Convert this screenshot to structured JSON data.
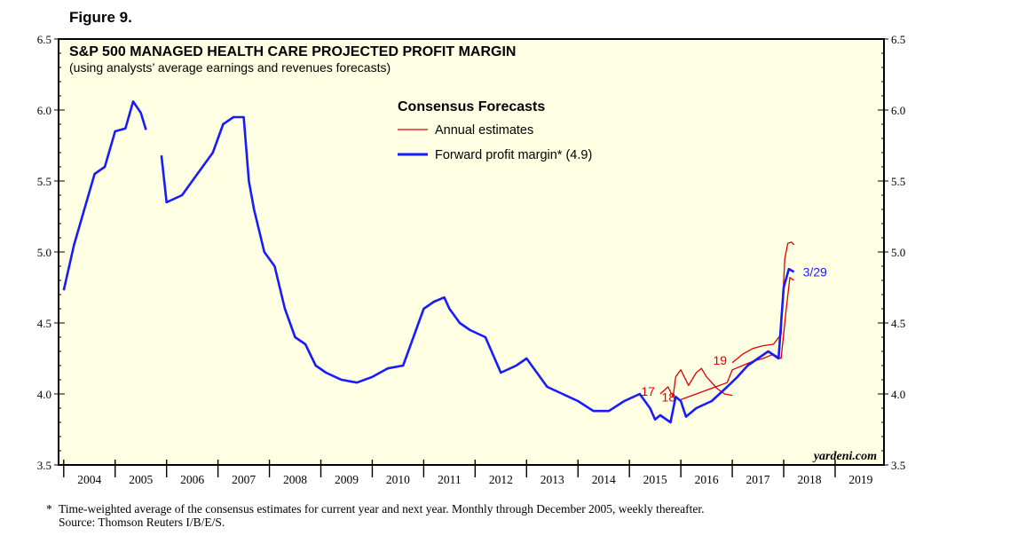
{
  "figure_label": "Figure 9.",
  "footnote": {
    "marker": "*",
    "text": "Time-weighted average of the consensus estimates for current year and next year. Monthly through December 2005, weekly thereafter.",
    "source": "Source: Thomson Reuters I/B/E/S."
  },
  "chart_data": {
    "type": "line",
    "title": "S&P 500 MANAGED HEALTH CARE PROJECTED PROFIT MARGIN",
    "subtitle": "(using analysts’ average earnings and revenues forecasts)",
    "legend_title": "Consensus Forecasts",
    "legend_position": "top-center",
    "watermark": "yardeni.com",
    "ylim": [
      3.5,
      6.5
    ],
    "xlim": [
      2003.9,
      2019.95
    ],
    "y_ticks": [
      "3.5",
      "4.0",
      "4.5",
      "5.0",
      "5.5",
      "6.0",
      "6.5"
    ],
    "x_tick_labels": [
      "2004",
      "2005",
      "2006",
      "2007",
      "2008",
      "2009",
      "2010",
      "2011",
      "2012",
      "2013",
      "2014",
      "2015",
      "2016",
      "2017",
      "2018",
      "2019"
    ],
    "grid": false,
    "series": [
      {
        "name": "Annual estimates",
        "color": "#dd0000",
        "segments": [
          {
            "label": "17",
            "x": [
              2015.6,
              2015.75,
              2015.85,
              2015.9,
              2016.0,
              2016.15,
              2016.3,
              2016.4,
              2016.5,
              2016.7,
              2016.85,
              2017.0
            ],
            "y": [
              4.0,
              4.05,
              3.98,
              4.12,
              4.17,
              4.06,
              4.15,
              4.18,
              4.12,
              4.04,
              4.0,
              3.99
            ]
          },
          {
            "label": "18",
            "x": [
              2016.0,
              2016.3,
              2016.6,
              2016.9,
              2017.0,
              2017.2,
              2017.4,
              2017.6,
              2017.8,
              2017.95,
              2018.05,
              2018.12,
              2018.2
            ],
            "y": [
              3.96,
              4.0,
              4.04,
              4.08,
              4.17,
              4.2,
              4.23,
              4.25,
              4.28,
              4.25,
              4.6,
              4.82,
              4.8
            ]
          },
          {
            "label": "19",
            "x": [
              2017.0,
              2017.2,
              2017.4,
              2017.6,
              2017.8,
              2017.95,
              2018.02,
              2018.08,
              2018.15,
              2018.2
            ],
            "y": [
              4.22,
              4.28,
              4.32,
              4.34,
              4.35,
              4.42,
              4.95,
              5.06,
              5.07,
              5.05
            ]
          }
        ]
      },
      {
        "name": "Forward profit margin* (4.9)",
        "end_label": "3/29",
        "color": "#1a1aff",
        "segments": [
          {
            "x": [
              2004.0,
              2004.2,
              2004.4,
              2004.6,
              2004.8,
              2005.0,
              2005.2,
              2005.35,
              2005.5,
              2005.6
            ],
            "y": [
              4.73,
              5.05,
              5.3,
              5.55,
              5.6,
              5.85,
              5.87,
              6.06,
              5.98,
              5.86
            ]
          },
          {
            "x": [
              2005.9,
              2006.0,
              2006.3,
              2006.6,
              2006.9,
              2007.1,
              2007.3,
              2007.5,
              2007.6,
              2007.7,
              2007.9,
              2008.1,
              2008.3,
              2008.5,
              2008.7,
              2008.9,
              2009.1,
              2009.4,
              2009.7,
              2010.0,
              2010.3,
              2010.6,
              2010.9,
              2011.0,
              2011.2,
              2011.4,
              2011.5,
              2011.7,
              2011.9,
              2012.2,
              2012.5,
              2012.8,
              2013.0,
              2013.2,
              2013.4,
              2013.7,
              2014.0,
              2014.3,
              2014.6,
              2014.9,
              2015.2,
              2015.4,
              2015.5,
              2015.6,
              2015.8,
              2015.9,
              2016.0,
              2016.1,
              2016.3,
              2016.6,
              2016.9,
              2017.1,
              2017.3,
              2017.5,
              2017.7,
              2017.9,
              2018.0,
              2018.1,
              2018.2
            ],
            "y": [
              5.68,
              5.35,
              5.4,
              5.55,
              5.7,
              5.9,
              5.95,
              5.95,
              5.5,
              5.3,
              5.0,
              4.9,
              4.6,
              4.4,
              4.35,
              4.2,
              4.15,
              4.1,
              4.08,
              4.12,
              4.18,
              4.2,
              4.5,
              4.6,
              4.65,
              4.68,
              4.6,
              4.5,
              4.45,
              4.4,
              4.15,
              4.2,
              4.25,
              4.15,
              4.05,
              4.0,
              3.95,
              3.88,
              3.88,
              3.95,
              4.0,
              3.9,
              3.82,
              3.85,
              3.8,
              3.98,
              3.95,
              3.84,
              3.9,
              3.95,
              4.05,
              4.12,
              4.2,
              4.25,
              4.3,
              4.25,
              4.75,
              4.88,
              4.86
            ]
          }
        ]
      }
    ]
  }
}
